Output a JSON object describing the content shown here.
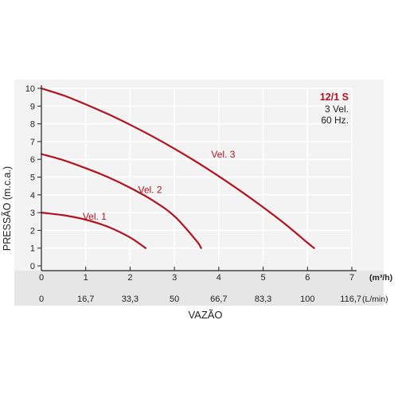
{
  "chart_data": {
    "type": "line",
    "title": "12/1 S",
    "subtitle": [
      "3 Vel.",
      "60 Hz."
    ],
    "ylabel": "PRESSÃO (m.c.a.)",
    "xlabel": "VAZÃO",
    "x_unit_primary": "(m³/h)",
    "x_unit_secondary": "(L/min)",
    "xlim": [
      0,
      7
    ],
    "ylim": [
      0,
      10
    ],
    "xticks": [
      "0",
      "1",
      "2",
      "3",
      "4",
      "5",
      "6",
      "7"
    ],
    "xticks_secondary": [
      "0",
      "16,7",
      "33,3",
      "50",
      "66,7",
      "83,3",
      "100",
      "116,7"
    ],
    "yticks": [
      "0",
      "1",
      "2",
      "3",
      "4",
      "5",
      "6",
      "7",
      "8",
      "9",
      "10"
    ],
    "grid": true,
    "series": [
      {
        "name": "Vel. 1",
        "x": [
          0,
          0.5,
          1.0,
          1.5,
          2.0,
          2.35
        ],
        "y": [
          3.0,
          2.85,
          2.6,
          2.2,
          1.6,
          1.0
        ]
      },
      {
        "name": "Vel. 2",
        "x": [
          0,
          0.5,
          1.0,
          1.5,
          2.0,
          2.5,
          3.0,
          3.5,
          3.6
        ],
        "y": [
          6.3,
          5.95,
          5.5,
          5.0,
          4.4,
          3.7,
          2.8,
          1.4,
          1.0
        ]
      },
      {
        "name": "Vel. 3",
        "x": [
          0,
          0.5,
          1.0,
          1.5,
          2.0,
          2.5,
          3.0,
          3.5,
          4.0,
          4.5,
          5.0,
          5.5,
          6.0,
          6.15
        ],
        "y": [
          10.0,
          9.6,
          9.1,
          8.55,
          7.95,
          7.3,
          6.6,
          5.85,
          5.05,
          4.2,
          3.3,
          2.35,
          1.3,
          1.0
        ]
      }
    ],
    "colors": {
      "line": "#b3121f",
      "plot_bg": "#f3f3f3",
      "axis_band": "#e6e6e6",
      "grid": "#ffffff",
      "title": "#b3121f",
      "text": "#222222"
    }
  }
}
